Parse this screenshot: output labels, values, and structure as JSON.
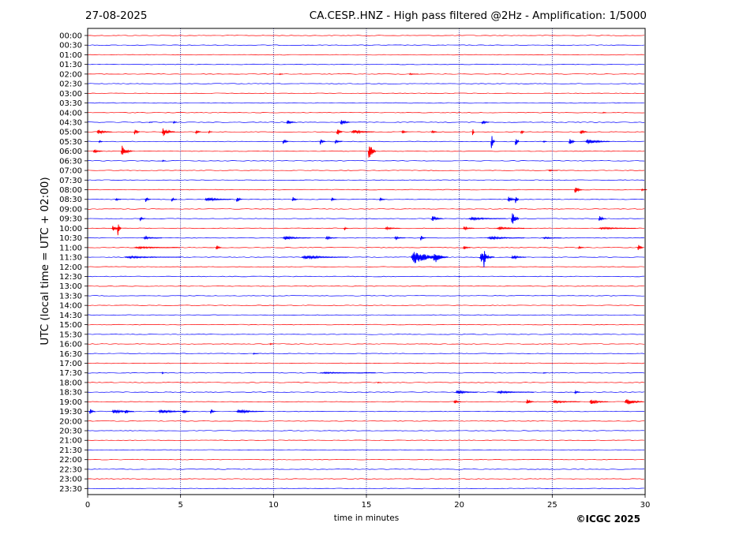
{
  "header": {
    "date": "27-08-2025",
    "title": "CA.CESP..HNZ - High pass filtered @2Hz - Amplification: 1/5000"
  },
  "footer": {
    "copyright": "©ICGC 2025"
  },
  "colors": {
    "even_row": "#ff0000",
    "odd_row": "#0000ff",
    "grid": "#000080"
  },
  "chart_data": {
    "type": "line",
    "title": "CA.CESP..HNZ - High pass filtered @2Hz - Amplification: 1/5000",
    "xlabel": "time in minutes",
    "ylabel": "UTC (local time = UTC + 02:00)",
    "xlim": [
      0,
      30
    ],
    "xticks": [
      "0",
      "5",
      "10",
      "15",
      "20",
      "25",
      "30"
    ],
    "vertical_grid_minutes": [
      5,
      10,
      15,
      20,
      25
    ],
    "rows": [
      "00:00",
      "00:30",
      "01:00",
      "01:30",
      "02:00",
      "02:30",
      "03:00",
      "03:30",
      "04:00",
      "04:30",
      "05:00",
      "05:30",
      "06:00",
      "06:30",
      "07:00",
      "07:30",
      "08:00",
      "08:30",
      "09:00",
      "09:30",
      "10:00",
      "10:30",
      "11:00",
      "11:30",
      "12:00",
      "12:30",
      "13:00",
      "13:30",
      "14:00",
      "14:30",
      "15:00",
      "15:30",
      "16:00",
      "16:30",
      "17:00",
      "17:30",
      "18:00",
      "18:30",
      "19:00",
      "19:30",
      "20:00",
      "20:30",
      "21:00",
      "21:30",
      "22:00",
      "22:30",
      "23:00",
      "23:30"
    ],
    "row_colors": [
      "red",
      "blue"
    ],
    "events": [
      {
        "row": "02:00",
        "minute": 10.3,
        "amp": 0.15,
        "dur": 0.2
      },
      {
        "row": "02:00",
        "minute": 17.3,
        "amp": 0.1,
        "dur": 0.5
      },
      {
        "row": "04:00",
        "minute": 27.7,
        "amp": 0.1,
        "dur": 0.2
      },
      {
        "row": "04:30",
        "minute": 3.3,
        "amp": 0.1,
        "dur": 0.2
      },
      {
        "row": "04:30",
        "minute": 4.6,
        "amp": 0.3,
        "dur": 0.2
      },
      {
        "row": "04:30",
        "minute": 10.7,
        "amp": 0.35,
        "dur": 0.5
      },
      {
        "row": "04:30",
        "minute": 13.6,
        "amp": 0.5,
        "dur": 0.5
      },
      {
        "row": "04:30",
        "minute": 21.2,
        "amp": 0.35,
        "dur": 0.4
      },
      {
        "row": "05:00",
        "minute": 0.5,
        "amp": 0.35,
        "dur": 0.8
      },
      {
        "row": "05:00",
        "minute": 2.5,
        "amp": 0.5,
        "dur": 0.3
      },
      {
        "row": "05:00",
        "minute": 4.0,
        "amp": 0.6,
        "dur": 0.7
      },
      {
        "row": "05:00",
        "minute": 5.8,
        "amp": 0.35,
        "dur": 0.3
      },
      {
        "row": "05:00",
        "minute": 6.5,
        "amp": 0.2,
        "dur": 0.2
      },
      {
        "row": "05:00",
        "minute": 13.4,
        "amp": 0.8,
        "dur": 0.3
      },
      {
        "row": "05:00",
        "minute": 14.2,
        "amp": 0.3,
        "dur": 1.2
      },
      {
        "row": "05:00",
        "minute": 16.9,
        "amp": 0.3,
        "dur": 0.3
      },
      {
        "row": "05:00",
        "minute": 18.5,
        "amp": 0.25,
        "dur": 0.3
      },
      {
        "row": "05:00",
        "minute": 20.7,
        "amp": 0.9,
        "dur": 0.1
      },
      {
        "row": "05:00",
        "minute": 23.3,
        "amp": 0.5,
        "dur": 0.2
      },
      {
        "row": "05:00",
        "minute": 26.5,
        "amp": 0.4,
        "dur": 0.4
      },
      {
        "row": "05:30",
        "minute": 0.6,
        "amp": 0.3,
        "dur": 0.2
      },
      {
        "row": "05:30",
        "minute": 10.5,
        "amp": 0.5,
        "dur": 0.3
      },
      {
        "row": "05:30",
        "minute": 12.5,
        "amp": 0.5,
        "dur": 0.3
      },
      {
        "row": "05:30",
        "minute": 13.3,
        "amp": 0.3,
        "dur": 0.4
      },
      {
        "row": "05:30",
        "minute": 21.7,
        "amp": 1.7,
        "dur": 0.2
      },
      {
        "row": "05:30",
        "minute": 23.0,
        "amp": 1.3,
        "dur": 0.2
      },
      {
        "row": "05:30",
        "minute": 24.5,
        "amp": 0.2,
        "dur": 0.2
      },
      {
        "row": "05:30",
        "minute": 25.9,
        "amp": 0.8,
        "dur": 0.3
      },
      {
        "row": "05:30",
        "minute": 26.8,
        "amp": 0.4,
        "dur": 1.3
      },
      {
        "row": "06:00",
        "minute": 0.3,
        "amp": 0.3,
        "dur": 0.5
      },
      {
        "row": "06:00",
        "minute": 1.8,
        "amp": 0.8,
        "dur": 0.6
      },
      {
        "row": "06:00",
        "minute": 15.1,
        "amp": 1.5,
        "dur": 0.4
      },
      {
        "row": "06:30",
        "minute": 4.0,
        "amp": 0.15,
        "dur": 0.2
      },
      {
        "row": "07:00",
        "minute": 24.8,
        "amp": 0.1,
        "dur": 0.5
      },
      {
        "row": "08:00",
        "minute": 26.2,
        "amp": 0.6,
        "dur": 0.4
      },
      {
        "row": "08:00",
        "minute": 29.8,
        "amp": 0.15,
        "dur": 0.3
      },
      {
        "row": "08:30",
        "minute": 1.5,
        "amp": 0.2,
        "dur": 0.3
      },
      {
        "row": "08:30",
        "minute": 3.1,
        "amp": 0.4,
        "dur": 0.3
      },
      {
        "row": "08:30",
        "minute": 4.5,
        "amp": 0.3,
        "dur": 0.3
      },
      {
        "row": "08:30",
        "minute": 6.3,
        "amp": 0.3,
        "dur": 1.4
      },
      {
        "row": "08:30",
        "minute": 8.0,
        "amp": 0.5,
        "dur": 0.3
      },
      {
        "row": "08:30",
        "minute": 11.0,
        "amp": 0.4,
        "dur": 0.3
      },
      {
        "row": "08:30",
        "minute": 13.1,
        "amp": 0.3,
        "dur": 0.3
      },
      {
        "row": "08:30",
        "minute": 15.7,
        "amp": 0.3,
        "dur": 0.3
      },
      {
        "row": "08:30",
        "minute": 22.6,
        "amp": 0.4,
        "dur": 0.5
      },
      {
        "row": "08:30",
        "minute": 23.0,
        "amp": 0.9,
        "dur": 0.2
      },
      {
        "row": "09:30",
        "minute": 2.8,
        "amp": 0.3,
        "dur": 0.3
      },
      {
        "row": "09:30",
        "minute": 18.5,
        "amp": 0.4,
        "dur": 0.6
      },
      {
        "row": "09:30",
        "minute": 20.5,
        "amp": 0.2,
        "dur": 2.0
      },
      {
        "row": "09:30",
        "minute": 22.8,
        "amp": 1.4,
        "dur": 0.4
      },
      {
        "row": "09:30",
        "minute": 27.5,
        "amp": 0.4,
        "dur": 0.4
      },
      {
        "row": "10:00",
        "minute": 1.3,
        "amp": 0.4,
        "dur": 0.5
      },
      {
        "row": "10:00",
        "minute": 1.6,
        "amp": 1.5,
        "dur": 0.2
      },
      {
        "row": "10:00",
        "minute": 13.8,
        "amp": 0.3,
        "dur": 0.2
      },
      {
        "row": "10:00",
        "minute": 16.0,
        "amp": 0.2,
        "dur": 0.8
      },
      {
        "row": "10:00",
        "minute": 20.2,
        "amp": 0.25,
        "dur": 0.6
      },
      {
        "row": "10:00",
        "minute": 22.0,
        "amp": 0.2,
        "dur": 1.5
      },
      {
        "row": "10:00",
        "minute": 27.5,
        "amp": 0.15,
        "dur": 2.0
      },
      {
        "row": "10:30",
        "minute": 3.0,
        "amp": 0.2,
        "dur": 1.0
      },
      {
        "row": "10:30",
        "minute": 10.5,
        "amp": 0.25,
        "dur": 1.5
      },
      {
        "row": "10:30",
        "minute": 12.8,
        "amp": 0.25,
        "dur": 0.6
      },
      {
        "row": "10:30",
        "minute": 16.5,
        "amp": 0.2,
        "dur": 0.6
      },
      {
        "row": "10:30",
        "minute": 17.9,
        "amp": 0.4,
        "dur": 0.3
      },
      {
        "row": "10:30",
        "minute": 21.5,
        "amp": 0.2,
        "dur": 2.0
      },
      {
        "row": "10:30",
        "minute": 24.5,
        "amp": 0.15,
        "dur": 1.0
      },
      {
        "row": "11:00",
        "minute": 2.5,
        "amp": 0.15,
        "dur": 2.5
      },
      {
        "row": "11:00",
        "minute": 6.9,
        "amp": 0.4,
        "dur": 0.3
      },
      {
        "row": "11:00",
        "minute": 20.2,
        "amp": 0.3,
        "dur": 0.4
      },
      {
        "row": "11:00",
        "minute": 26.4,
        "amp": 0.2,
        "dur": 0.3
      },
      {
        "row": "11:00",
        "minute": 29.6,
        "amp": 0.5,
        "dur": 0.3
      },
      {
        "row": "11:30",
        "minute": 2.0,
        "amp": 0.15,
        "dur": 3.0
      },
      {
        "row": "11:30",
        "minute": 11.5,
        "amp": 0.25,
        "dur": 2.5
      },
      {
        "row": "11:30",
        "minute": 17.4,
        "amp": 0.9,
        "dur": 2.0
      },
      {
        "row": "11:30",
        "minute": 18.6,
        "amp": 1.1,
        "dur": 0.6
      },
      {
        "row": "11:30",
        "minute": 21.1,
        "amp": 0.7,
        "dur": 0.8
      },
      {
        "row": "11:30",
        "minute": 21.3,
        "amp": 2.0,
        "dur": 0.2
      },
      {
        "row": "11:30",
        "minute": 22.8,
        "amp": 0.3,
        "dur": 0.8
      },
      {
        "row": "16:00",
        "minute": 9.8,
        "amp": 0.15,
        "dur": 0.2
      },
      {
        "row": "16:30",
        "minute": 8.9,
        "amp": 0.1,
        "dur": 0.3
      },
      {
        "row": "17:30",
        "minute": 4.0,
        "amp": 0.2,
        "dur": 0.1
      },
      {
        "row": "17:30",
        "minute": 12.5,
        "amp": 0.1,
        "dur": 3.0
      },
      {
        "row": "17:30",
        "minute": 24.5,
        "amp": 0.1,
        "dur": 0.2
      },
      {
        "row": "18:00",
        "minute": 15.6,
        "amp": 0.1,
        "dur": 0.2
      },
      {
        "row": "18:30",
        "minute": 19.8,
        "amp": 0.25,
        "dur": 1.2
      },
      {
        "row": "18:30",
        "minute": 22.0,
        "amp": 0.15,
        "dur": 2.0
      },
      {
        "row": "18:30",
        "minute": 26.2,
        "amp": 0.3,
        "dur": 0.3
      },
      {
        "row": "19:00",
        "minute": 19.7,
        "amp": 0.3,
        "dur": 0.4
      },
      {
        "row": "19:00",
        "minute": 23.6,
        "amp": 0.4,
        "dur": 0.4
      },
      {
        "row": "19:00",
        "minute": 25.0,
        "amp": 0.2,
        "dur": 1.5
      },
      {
        "row": "19:00",
        "minute": 27.0,
        "amp": 0.35,
        "dur": 1.0
      },
      {
        "row": "19:00",
        "minute": 28.9,
        "amp": 0.5,
        "dur": 1.0
      },
      {
        "row": "19:30",
        "minute": 0.1,
        "amp": 0.4,
        "dur": 0.3
      },
      {
        "row": "19:30",
        "minute": 1.3,
        "amp": 0.3,
        "dur": 1.2
      },
      {
        "row": "19:30",
        "minute": 2.0,
        "amp": 0.35,
        "dur": 0.4
      },
      {
        "row": "19:30",
        "minute": 3.8,
        "amp": 0.3,
        "dur": 1.5
      },
      {
        "row": "19:30",
        "minute": 5.1,
        "amp": 0.35,
        "dur": 0.4
      },
      {
        "row": "19:30",
        "minute": 6.6,
        "amp": 0.35,
        "dur": 0.3
      },
      {
        "row": "19:30",
        "minute": 8.0,
        "amp": 0.3,
        "dur": 1.5
      }
    ]
  }
}
